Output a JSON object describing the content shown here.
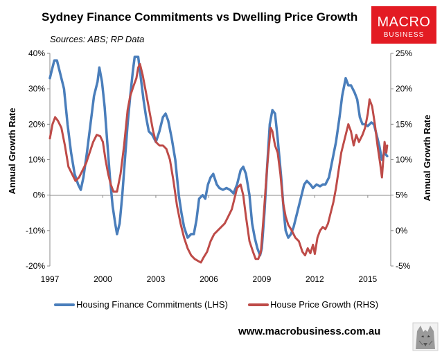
{
  "chart_data": {
    "type": "line",
    "title": "Sydney Finance Commitments vs Dwelling Price Growth",
    "subtitle": "Sources: ABS; RP Data",
    "y_left_label": "Annual Growth Rate",
    "y_right_label": "Annual Growth Rate",
    "y_left_lim": [
      -20,
      40
    ],
    "y_right_lim": [
      -5,
      25
    ],
    "y_left_ticks": [
      -20,
      -10,
      0,
      10,
      20,
      30,
      40
    ],
    "y_left_tick_labels": [
      "-20%",
      "-10%",
      "0%",
      "10%",
      "20%",
      "30%",
      "40%"
    ],
    "y_right_ticks": [
      -5,
      0,
      5,
      10,
      15,
      20,
      25
    ],
    "y_right_tick_labels": [
      "-5%",
      "0%",
      "5%",
      "10%",
      "15%",
      "20%",
      "25%"
    ],
    "x_lim": [
      1997,
      2016.3
    ],
    "x_ticks": [
      1997,
      2000,
      2003,
      2006,
      2009,
      2012,
      2015
    ],
    "x_tick_labels": [
      "1997",
      "2000",
      "2003",
      "2006",
      "2009",
      "2012",
      "2015"
    ],
    "series": [
      {
        "name": "Housing Finance Commitments (LHS)",
        "axis": "left",
        "color": "#4a7ebb",
        "points": [
          [
            1997.0,
            33
          ],
          [
            1997.1,
            35
          ],
          [
            1997.25,
            38
          ],
          [
            1997.4,
            38
          ],
          [
            1997.6,
            34
          ],
          [
            1997.8,
            30
          ],
          [
            1998.0,
            20
          ],
          [
            1998.2,
            12
          ],
          [
            1998.4,
            6
          ],
          [
            1998.6,
            3
          ],
          [
            1998.75,
            1.5
          ],
          [
            1998.9,
            5
          ],
          [
            1999.1,
            12
          ],
          [
            1999.3,
            20
          ],
          [
            1999.5,
            28
          ],
          [
            1999.7,
            32
          ],
          [
            1999.8,
            36
          ],
          [
            1999.95,
            32
          ],
          [
            2000.1,
            25
          ],
          [
            2000.25,
            15
          ],
          [
            2000.4,
            5
          ],
          [
            2000.55,
            -3
          ],
          [
            2000.7,
            -8
          ],
          [
            2000.8,
            -11
          ],
          [
            2000.95,
            -8
          ],
          [
            2001.1,
            0
          ],
          [
            2001.25,
            10
          ],
          [
            2001.4,
            20
          ],
          [
            2001.55,
            28
          ],
          [
            2001.7,
            35
          ],
          [
            2001.8,
            39
          ],
          [
            2002.0,
            39
          ],
          [
            2002.15,
            33
          ],
          [
            2002.3,
            27
          ],
          [
            2002.45,
            22
          ],
          [
            2002.6,
            18
          ],
          [
            2002.8,
            17
          ],
          [
            2003.0,
            15
          ],
          [
            2003.2,
            18
          ],
          [
            2003.4,
            22
          ],
          [
            2003.55,
            23
          ],
          [
            2003.7,
            21
          ],
          [
            2003.9,
            16
          ],
          [
            2004.1,
            10
          ],
          [
            2004.3,
            0
          ],
          [
            2004.45,
            -5
          ],
          [
            2004.6,
            -9
          ],
          [
            2004.8,
            -12
          ],
          [
            2005.0,
            -11
          ],
          [
            2005.15,
            -11
          ],
          [
            2005.3,
            -7
          ],
          [
            2005.45,
            -1
          ],
          [
            2005.65,
            0
          ],
          [
            2005.8,
            -1
          ],
          [
            2005.95,
            3
          ],
          [
            2006.1,
            5
          ],
          [
            2006.25,
            6
          ],
          [
            2006.45,
            3
          ],
          [
            2006.6,
            2
          ],
          [
            2006.8,
            1.5
          ],
          [
            2007.0,
            2
          ],
          [
            2007.2,
            1.5
          ],
          [
            2007.4,
            0.5
          ],
          [
            2007.6,
            3
          ],
          [
            2007.8,
            7
          ],
          [
            2007.95,
            8
          ],
          [
            2008.1,
            6
          ],
          [
            2008.3,
            0
          ],
          [
            2008.45,
            -8
          ],
          [
            2008.6,
            -12
          ],
          [
            2008.75,
            -15
          ],
          [
            2008.9,
            -17
          ],
          [
            2009.0,
            -15
          ],
          [
            2009.15,
            -5
          ],
          [
            2009.3,
            8
          ],
          [
            2009.45,
            20
          ],
          [
            2009.6,
            24
          ],
          [
            2009.75,
            23
          ],
          [
            2009.9,
            16
          ],
          [
            2010.1,
            5
          ],
          [
            2010.25,
            -5
          ],
          [
            2010.35,
            -10
          ],
          [
            2010.5,
            -12
          ],
          [
            2010.65,
            -11
          ],
          [
            2010.8,
            -9
          ],
          [
            2011.0,
            -5
          ],
          [
            2011.2,
            -1
          ],
          [
            2011.4,
            3
          ],
          [
            2011.55,
            4
          ],
          [
            2011.75,
            3
          ],
          [
            2011.9,
            2
          ],
          [
            2012.1,
            3
          ],
          [
            2012.3,
            2.5
          ],
          [
            2012.45,
            3
          ],
          [
            2012.6,
            3
          ],
          [
            2012.8,
            5
          ],
          [
            2013.0,
            10
          ],
          [
            2013.2,
            15
          ],
          [
            2013.4,
            22
          ],
          [
            2013.55,
            28
          ],
          [
            2013.75,
            33
          ],
          [
            2013.9,
            31
          ],
          [
            2014.05,
            31
          ],
          [
            2014.25,
            29
          ],
          [
            2014.4,
            27
          ],
          [
            2014.55,
            22
          ],
          [
            2014.7,
            20
          ],
          [
            2014.85,
            20
          ],
          [
            2015.0,
            19.5
          ],
          [
            2015.2,
            20.5
          ],
          [
            2015.35,
            20
          ],
          [
            2015.5,
            17
          ],
          [
            2015.65,
            14
          ],
          [
            2015.8,
            10
          ],
          [
            2015.95,
            12
          ],
          [
            2016.1,
            11
          ]
        ]
      },
      {
        "name": "House Price Growth (RHS)",
        "axis": "right",
        "color": "#be4b48",
        "points": [
          [
            1997.0,
            13
          ],
          [
            1997.15,
            15
          ],
          [
            1997.3,
            16
          ],
          [
            1997.45,
            15.5
          ],
          [
            1997.65,
            14.5
          ],
          [
            1997.85,
            12
          ],
          [
            1998.05,
            9
          ],
          [
            1998.25,
            8
          ],
          [
            1998.45,
            7
          ],
          [
            1998.65,
            7.5
          ],
          [
            1998.85,
            8.5
          ],
          [
            1999.05,
            9.5
          ],
          [
            1999.25,
            11
          ],
          [
            1999.45,
            12.5
          ],
          [
            1999.65,
            13.5
          ],
          [
            1999.85,
            13.3
          ],
          [
            2000.0,
            12.5
          ],
          [
            2000.15,
            10
          ],
          [
            2000.3,
            8
          ],
          [
            2000.45,
            6.5
          ],
          [
            2000.6,
            5.5
          ],
          [
            2000.8,
            5.5
          ],
          [
            2001.0,
            8
          ],
          [
            2001.2,
            12
          ],
          [
            2001.4,
            17
          ],
          [
            2001.55,
            19
          ],
          [
            2001.75,
            20.5
          ],
          [
            2001.9,
            21.5
          ],
          [
            2002.0,
            23
          ],
          [
            2002.1,
            23.5
          ],
          [
            2002.25,
            22
          ],
          [
            2002.4,
            20
          ],
          [
            2002.55,
            18
          ],
          [
            2002.7,
            16
          ],
          [
            2002.85,
            14
          ],
          [
            2003.0,
            12.5
          ],
          [
            2003.2,
            12
          ],
          [
            2003.4,
            12
          ],
          [
            2003.6,
            11.5
          ],
          [
            2003.8,
            10
          ],
          [
            2004.0,
            7
          ],
          [
            2004.2,
            3.5
          ],
          [
            2004.4,
            1
          ],
          [
            2004.6,
            -1
          ],
          [
            2004.8,
            -2.5
          ],
          [
            2005.0,
            -3.5
          ],
          [
            2005.2,
            -4
          ],
          [
            2005.4,
            -4.3
          ],
          [
            2005.55,
            -4.5
          ],
          [
            2005.7,
            -3.8
          ],
          [
            2005.9,
            -3
          ],
          [
            2006.1,
            -1.5
          ],
          [
            2006.3,
            -0.5
          ],
          [
            2006.5,
            0
          ],
          [
            2006.7,
            0.5
          ],
          [
            2006.9,
            1
          ],
          [
            2007.1,
            2
          ],
          [
            2007.3,
            3
          ],
          [
            2007.45,
            4.5
          ],
          [
            2007.6,
            6
          ],
          [
            2007.8,
            6.5
          ],
          [
            2007.95,
            5
          ],
          [
            2008.1,
            2
          ],
          [
            2008.3,
            -1.5
          ],
          [
            2008.5,
            -3
          ],
          [
            2008.65,
            -4
          ],
          [
            2008.8,
            -4
          ],
          [
            2008.95,
            -3
          ],
          [
            2009.1,
            2
          ],
          [
            2009.3,
            9
          ],
          [
            2009.5,
            14.5
          ],
          [
            2009.6,
            14
          ],
          [
            2009.75,
            12
          ],
          [
            2009.9,
            11
          ],
          [
            2010.05,
            8
          ],
          [
            2010.2,
            4
          ],
          [
            2010.35,
            2
          ],
          [
            2010.5,
            0.8
          ],
          [
            2010.7,
            0
          ],
          [
            2010.9,
            -1
          ],
          [
            2011.1,
            -1.5
          ],
          [
            2011.3,
            -3
          ],
          [
            2011.45,
            -3.5
          ],
          [
            2011.6,
            -2.5
          ],
          [
            2011.75,
            -3.2
          ],
          [
            2011.9,
            -2
          ],
          [
            2012.0,
            -3.3
          ],
          [
            2012.15,
            -1
          ],
          [
            2012.3,
            0
          ],
          [
            2012.45,
            0.5
          ],
          [
            2012.6,
            0.2
          ],
          [
            2012.75,
            1
          ],
          [
            2012.9,
            2.5
          ],
          [
            2013.05,
            4
          ],
          [
            2013.2,
            6
          ],
          [
            2013.35,
            8.5
          ],
          [
            2013.5,
            11
          ],
          [
            2013.7,
            13
          ],
          [
            2013.9,
            15
          ],
          [
            2014.05,
            14
          ],
          [
            2014.2,
            12
          ],
          [
            2014.35,
            13.5
          ],
          [
            2014.5,
            12.5
          ],
          [
            2014.7,
            13.5
          ],
          [
            2014.85,
            14.5
          ],
          [
            2015.0,
            16.5
          ],
          [
            2015.1,
            18.5
          ],
          [
            2015.25,
            17.5
          ],
          [
            2015.4,
            15
          ],
          [
            2015.55,
            12
          ],
          [
            2015.7,
            9.5
          ],
          [
            2015.8,
            7.5
          ],
          [
            2015.95,
            12.5
          ],
          [
            2016.05,
            11
          ],
          [
            2016.1,
            12
          ]
        ]
      }
    ]
  },
  "branding": {
    "logo_line1": "MACRO",
    "logo_line2": "BUSINESS",
    "logo_color": "#e31b23",
    "website": "www.macrobusiness.com.au"
  }
}
